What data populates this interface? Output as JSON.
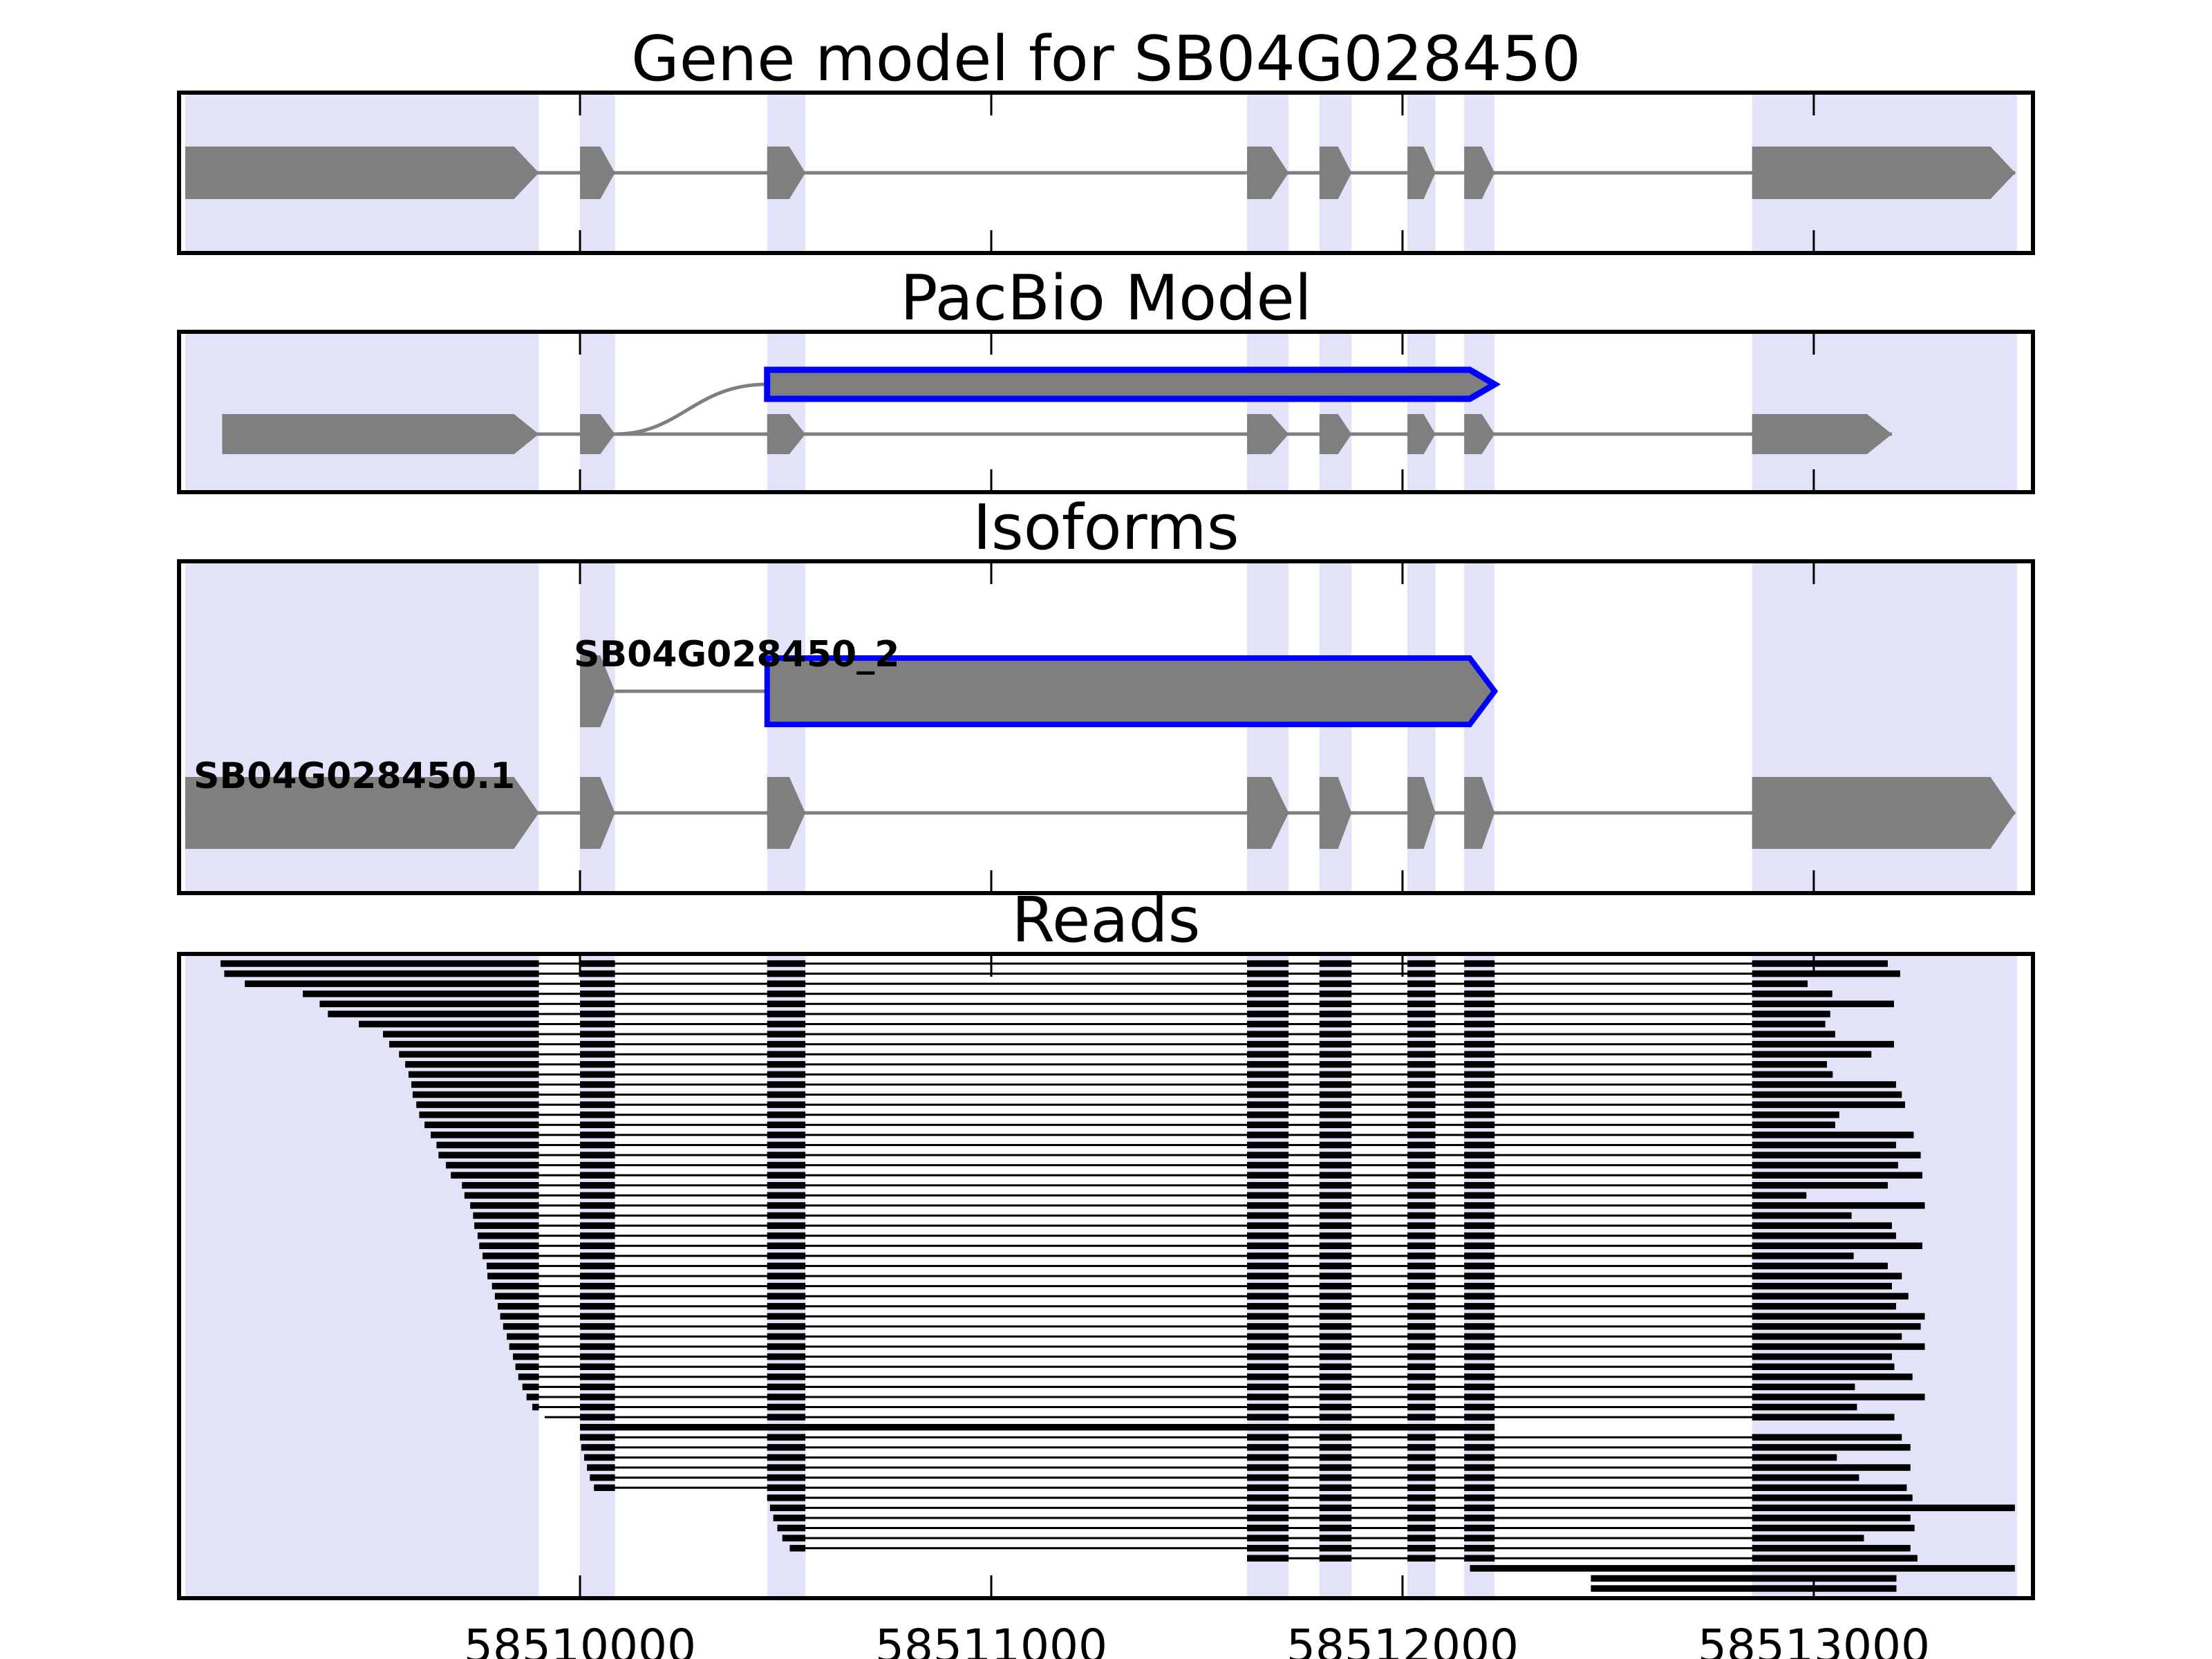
{
  "figure": {
    "background": "#ffffff"
  },
  "titles": {
    "panel1": "Gene model for SB04G028450",
    "panel2": "PacBio Model",
    "panel3": "Isoforms",
    "panel4": "Reads"
  },
  "colors": {
    "highlight_band": "#E2E2F8",
    "gene_gray": "#7F7F7F",
    "pacbio_outline": "#0000FF",
    "read_black": "#000000",
    "border": "#000000",
    "text": "#000000"
  },
  "chart_data": {
    "type": "genome_tracks",
    "title": "Gene model for SB04G028450",
    "panel_titles": [
      "Gene model for SB04G028450",
      "PacBio Model",
      "Isoforms",
      "Reads"
    ],
    "x_axis": {
      "range": [
        58509025,
        58513533
      ],
      "ticks": [
        {
          "value": 58510000,
          "label": "58510000"
        },
        {
          "value": 58511000,
          "label": "58511000"
        },
        {
          "value": 58512000,
          "label": "58512000"
        },
        {
          "value": 58513000,
          "label": "58513000"
        }
      ]
    },
    "highlight_bands": [
      [
        58509040,
        58509900
      ],
      [
        58510000,
        58510085
      ],
      [
        58510455,
        58510548
      ],
      [
        58511622,
        58511723
      ],
      [
        58511798,
        58511876
      ],
      [
        58512012,
        58512080
      ],
      [
        58512150,
        58512224
      ],
      [
        58512850,
        58513494
      ]
    ],
    "gene_model": {
      "name": "SB04G028450",
      "arrow_direction": "right",
      "exons": [
        [
          58509040,
          58509900
        ],
        [
          58510000,
          58510085
        ],
        [
          58510455,
          58510548
        ],
        [
          58511622,
          58511723
        ],
        [
          58511798,
          58511876
        ],
        [
          58512012,
          58512080
        ],
        [
          58512150,
          58512224
        ],
        [
          58512850,
          58513490
        ]
      ]
    },
    "pacbio": {
      "block": [
        58510455,
        58512224
      ],
      "junction_from": 58510085,
      "junction_to": 58510455,
      "reference_exons": [
        [
          58509130,
          58509900
        ],
        [
          58510000,
          58510085
        ],
        [
          58510455,
          58510548
        ],
        [
          58511622,
          58511723
        ],
        [
          58511798,
          58511876
        ],
        [
          58512012,
          58512080
        ],
        [
          58512150,
          58512224
        ],
        [
          58512850,
          58513190
        ]
      ]
    },
    "isoforms": [
      {
        "name": "SB04G028450_2",
        "highlighted": true,
        "small_exon": [
          58510000,
          58510085
        ],
        "block": [
          58510455,
          58512224
        ]
      },
      {
        "name": "SB04G028450.1",
        "highlighted": false,
        "exons": [
          [
            58509040,
            58509900
          ],
          [
            58510000,
            58510085
          ],
          [
            58510455,
            58510548
          ],
          [
            58511622,
            58511723
          ],
          [
            58511798,
            58511876
          ],
          [
            58512012,
            58512080
          ],
          [
            58512150,
            58512224
          ],
          [
            58512850,
            58513490
          ]
        ]
      }
    ],
    "reads": [
      [
        58509126,
        58513180
      ],
      [
        58509135,
        58513210
      ],
      [
        58509185,
        58512985
      ],
      [
        58509326,
        58513045
      ],
      [
        58509367,
        58513195
      ],
      [
        58509387,
        58513040
      ],
      [
        58509462,
        58513028
      ],
      [
        58509521,
        58513052
      ],
      [
        58509536,
        58513195
      ],
      [
        58509560,
        58513140
      ],
      [
        58509575,
        58513032
      ],
      [
        58509583,
        58513046
      ],
      [
        58509590,
        58513200
      ],
      [
        58509593,
        58513214
      ],
      [
        58509602,
        58513222
      ],
      [
        58509609,
        58513062
      ],
      [
        58509622,
        58513052
      ],
      [
        58509637,
        58513243
      ],
      [
        58509651,
        58513200
      ],
      [
        58509656,
        58513260
      ],
      [
        58509674,
        58513205
      ],
      [
        58509686,
        58513264
      ],
      [
        58509713,
        58513180
      ],
      [
        58509719,
        58512982
      ],
      [
        58509733,
        58513270
      ],
      [
        58509740,
        58513092
      ],
      [
        58509743,
        58513190
      ],
      [
        58509751,
        58513200
      ],
      [
        58509755,
        58513264
      ],
      [
        58509763,
        58513097
      ],
      [
        58509773,
        58513180
      ],
      [
        58509775,
        58513214
      ],
      [
        58509786,
        58513190
      ],
      [
        58509793,
        58513230
      ],
      [
        58509800,
        58513200
      ],
      [
        58509806,
        58513270
      ],
      [
        58509813,
        58513260
      ],
      [
        58509822,
        58513214
      ],
      [
        58509828,
        58513270
      ],
      [
        58509837,
        58513190
      ],
      [
        58509843,
        58513196
      ],
      [
        58509850,
        58513240
      ],
      [
        58509860,
        58513100
      ],
      [
        58509870,
        58513270
      ],
      [
        58509884,
        58513105
      ],
      [
        58509914,
        58513196
      ],
      [
        58510000,
        58512224,
        1
      ],
      [
        58510000,
        58513214
      ],
      [
        58510003,
        58513235
      ],
      [
        58510010,
        58513056
      ],
      [
        58510017,
        58513235
      ],
      [
        58510024,
        58513110
      ],
      [
        58510034,
        58513226
      ],
      [
        58510455,
        58513240
      ],
      [
        58510462,
        58513489
      ],
      [
        58510470,
        58513235
      ],
      [
        58510480,
        58513245
      ],
      [
        58510492,
        58513122
      ],
      [
        58510510,
        58513235
      ],
      [
        58511622,
        58513252
      ],
      [
        58512164,
        58513489,
        1
      ],
      [
        58512458,
        58513201,
        1
      ],
      [
        58512458,
        58513201,
        1
      ]
    ]
  }
}
